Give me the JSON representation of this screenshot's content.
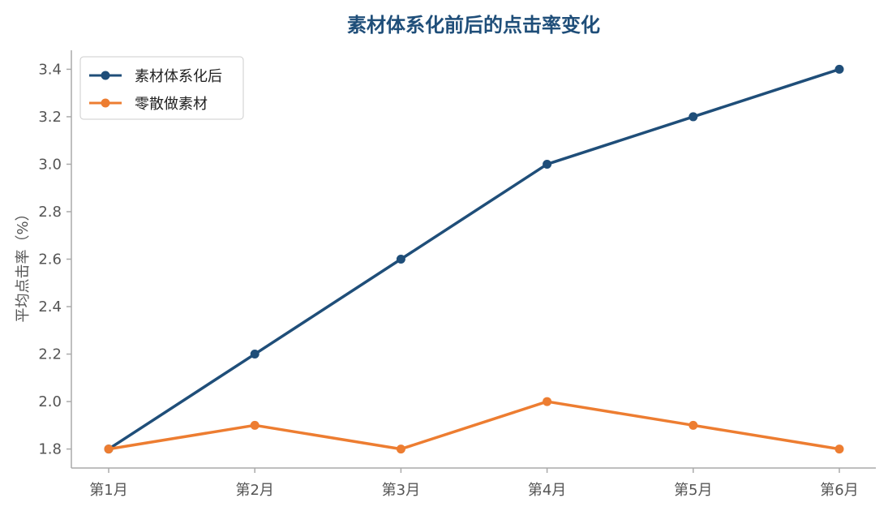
{
  "chart_data": {
    "type": "line",
    "title": "素材体系化前后的点击率变化",
    "xlabel": "",
    "ylabel": "平均点击率（%）",
    "categories": [
      "第1月",
      "第2月",
      "第3月",
      "第4月",
      "第5月",
      "第6月"
    ],
    "y_ticks": [
      "1.8",
      "2.0",
      "2.2",
      "2.4",
      "2.6",
      "2.8",
      "3.0",
      "3.2",
      "3.4"
    ],
    "ylim": [
      1.72,
      3.48
    ],
    "grid": false,
    "legend_position": "top-left",
    "series": [
      {
        "name": "素材体系化后",
        "color": "#1f4e79",
        "values": [
          1.8,
          2.2,
          2.6,
          3.0,
          3.2,
          3.4
        ]
      },
      {
        "name": "零散做素材",
        "color": "#ed7d31",
        "values": [
          1.8,
          1.9,
          1.8,
          2.0,
          1.9,
          1.8
        ]
      }
    ]
  },
  "colors": {
    "title": "#1f4e79",
    "axis": "#aaaaaa"
  }
}
